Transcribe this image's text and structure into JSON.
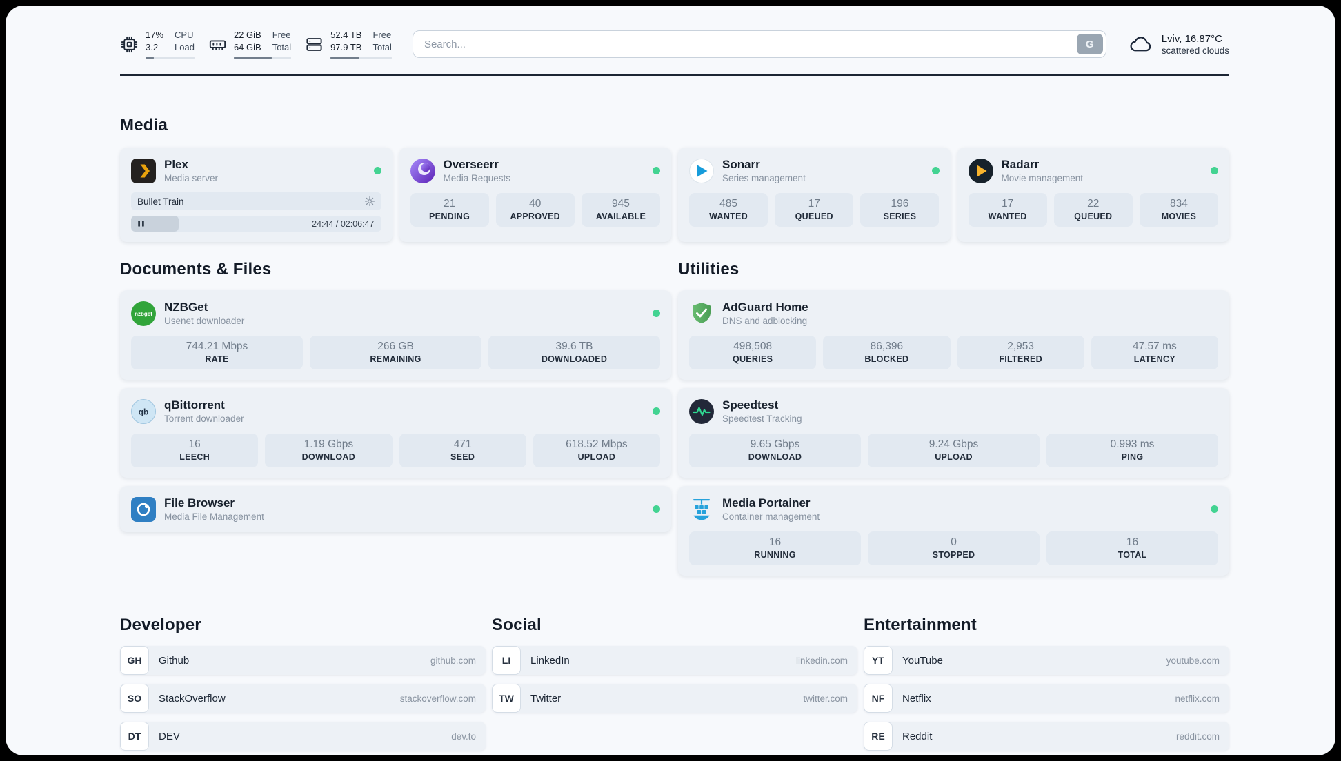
{
  "colors": {
    "status_online": "#43d392",
    "page_background": "#f7f9fc",
    "card_background": "#edf1f6"
  },
  "header": {
    "cpu": {
      "top_value": "17%",
      "bottom_value": "3.2",
      "top_label": "CPU",
      "bottom_label": "Load",
      "progress_pct": 17
    },
    "ram": {
      "top_value": "22 GiB",
      "bottom_value": "64 GiB",
      "top_label": "Free",
      "bottom_label": "Total",
      "progress_pct": 66
    },
    "disk": {
      "top_value": "52.4 TB",
      "bottom_value": "97.9 TB",
      "top_label": "Free",
      "bottom_label": "Total",
      "progress_pct": 47
    },
    "search": {
      "placeholder": "Search...",
      "button_label": "G"
    },
    "weather": {
      "location": "Lviv, 16.87°C",
      "condition": "scattered clouds"
    }
  },
  "media": {
    "title": "Media",
    "plex": {
      "name": "Plex",
      "subtitle": "Media server",
      "now_playing": "Bullet Train",
      "time": "24:44 / 02:06:47",
      "progress_pct": 19
    },
    "overseerr": {
      "name": "Overseerr",
      "subtitle": "Media Requests",
      "stats": [
        {
          "value": "21",
          "label": "PENDING"
        },
        {
          "value": "40",
          "label": "APPROVED"
        },
        {
          "value": "945",
          "label": "AVAILABLE"
        }
      ]
    },
    "sonarr": {
      "name": "Sonarr",
      "subtitle": "Series management",
      "stats": [
        {
          "value": "485",
          "label": "WANTED"
        },
        {
          "value": "17",
          "label": "QUEUED"
        },
        {
          "value": "196",
          "label": "SERIES"
        }
      ]
    },
    "radarr": {
      "name": "Radarr",
      "subtitle": "Movie management",
      "stats": [
        {
          "value": "17",
          "label": "WANTED"
        },
        {
          "value": "22",
          "label": "QUEUED"
        },
        {
          "value": "834",
          "label": "MOVIES"
        }
      ]
    }
  },
  "documents": {
    "title": "Documents & Files",
    "nzbget": {
      "name": "NZBGet",
      "subtitle": "Usenet downloader",
      "stats": [
        {
          "value": "744.21 Mbps",
          "label": "RATE"
        },
        {
          "value": "266 GB",
          "label": "REMAINING"
        },
        {
          "value": "39.6 TB",
          "label": "DOWNLOADED"
        }
      ]
    },
    "qbittorrent": {
      "name": "qBittorrent",
      "subtitle": "Torrent downloader",
      "stats": [
        {
          "value": "16",
          "label": "LEECH"
        },
        {
          "value": "1.19 Gbps",
          "label": "DOWNLOAD"
        },
        {
          "value": "471",
          "label": "SEED"
        },
        {
          "value": "618.52 Mbps",
          "label": "UPLOAD"
        }
      ]
    },
    "filebrowser": {
      "name": "File Browser",
      "subtitle": "Media File Management"
    }
  },
  "utilities": {
    "title": "Utilities",
    "adguard": {
      "name": "AdGuard Home",
      "subtitle": "DNS and adblocking",
      "stats": [
        {
          "value": "498,508",
          "label": "QUERIES"
        },
        {
          "value": "86,396",
          "label": "BLOCKED"
        },
        {
          "value": "2,953",
          "label": "FILTERED"
        },
        {
          "value": "47.57 ms",
          "label": "LATENCY"
        }
      ]
    },
    "speedtest": {
      "name": "Speedtest",
      "subtitle": "Speedtest Tracking",
      "stats": [
        {
          "value": "9.65 Gbps",
          "label": "DOWNLOAD"
        },
        {
          "value": "9.24 Gbps",
          "label": "UPLOAD"
        },
        {
          "value": "0.993 ms",
          "label": "PING"
        }
      ]
    },
    "portainer": {
      "name": "Media Portainer",
      "subtitle": "Container management",
      "stats": [
        {
          "value": "16",
          "label": "RUNNING"
        },
        {
          "value": "0",
          "label": "STOPPED"
        },
        {
          "value": "16",
          "label": "TOTAL"
        }
      ]
    }
  },
  "bookmarks": {
    "developer": {
      "title": "Developer",
      "items": [
        {
          "abbr": "GH",
          "name": "Github",
          "domain": "github.com"
        },
        {
          "abbr": "SO",
          "name": "StackOverflow",
          "domain": "stackoverflow.com"
        },
        {
          "abbr": "DT",
          "name": "DEV",
          "domain": "dev.to"
        }
      ]
    },
    "social": {
      "title": "Social",
      "items": [
        {
          "abbr": "LI",
          "name": "LinkedIn",
          "domain": "linkedin.com"
        },
        {
          "abbr": "TW",
          "name": "Twitter",
          "domain": "twitter.com"
        }
      ]
    },
    "entertainment": {
      "title": "Entertainment",
      "items": [
        {
          "abbr": "YT",
          "name": "YouTube",
          "domain": "youtube.com"
        },
        {
          "abbr": "NF",
          "name": "Netflix",
          "domain": "netflix.com"
        },
        {
          "abbr": "RE",
          "name": "Reddit",
          "domain": "reddit.com"
        }
      ]
    }
  }
}
